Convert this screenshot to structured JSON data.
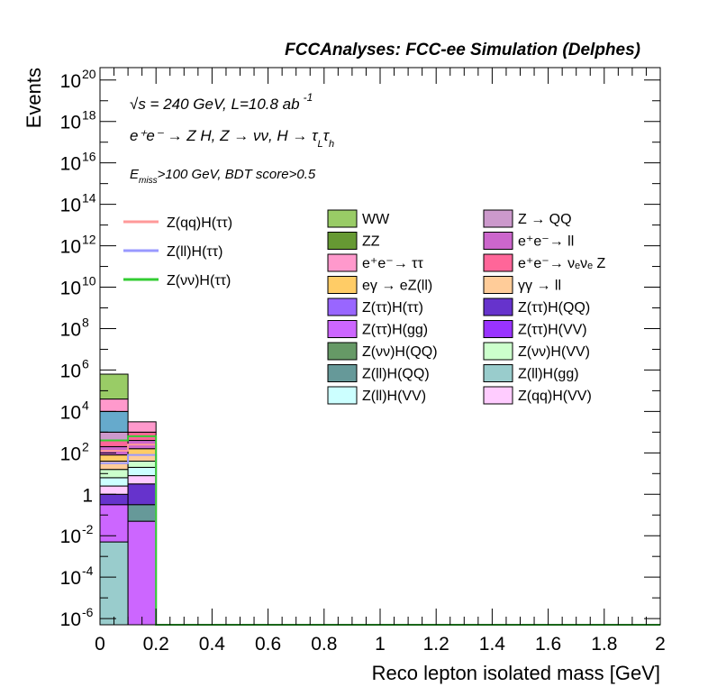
{
  "header": {
    "title": "FCCAnalyses: FCC-ee Simulation (Delphes)"
  },
  "annotations": {
    "sqrt_s": "√s = 240 GeV, L=10.8 ab",
    "lumi_exp": "-1",
    "process": "e⁺e⁻ → Z H, Z → νν, H → τ",
    "tau_sub_L": "L",
    "tau2": "τ",
    "tau_sub_h": "h",
    "cut_E": "E",
    "cut_sub": "miss",
    "cut_rest": ">100 GeV, BDT score>0.5"
  },
  "chart_data": {
    "type": "bar",
    "stacked": true,
    "xlabel": "Reco lepton isolated mass [GeV]",
    "ylabel": "Events",
    "xlim": [
      0,
      2
    ],
    "ylim_log10": [
      -6.3,
      20.6
    ],
    "log_y": true,
    "bin_edges": [
      0,
      0.1,
      0.2
    ],
    "x_ticks": [
      "0",
      "0.2",
      "0.4",
      "0.6",
      "0.8",
      "1",
      "1.2",
      "1.4",
      "1.6",
      "1.8",
      "2"
    ],
    "y_ticks": [
      {
        "v": -6,
        "label": "10",
        "exp": "-6"
      },
      {
        "v": -4,
        "label": "10",
        "exp": "-4"
      },
      {
        "v": -2,
        "label": "10",
        "exp": "-2"
      },
      {
        "v": 0,
        "label": "1",
        "exp": ""
      },
      {
        "v": 2,
        "label": "10",
        "exp": "2"
      },
      {
        "v": 4,
        "label": "10",
        "exp": "4"
      },
      {
        "v": 6,
        "label": "10",
        "exp": "6"
      },
      {
        "v": 8,
        "label": "10",
        "exp": "8"
      },
      {
        "v": 10,
        "label": "10",
        "exp": "10"
      },
      {
        "v": 12,
        "label": "10",
        "exp": "12"
      },
      {
        "v": 14,
        "label": "10",
        "exp": "14"
      },
      {
        "v": 16,
        "label": "10",
        "exp": "16"
      },
      {
        "v": 18,
        "label": "10",
        "exp": "18"
      },
      {
        "v": 20,
        "label": "10",
        "exp": "20"
      }
    ],
    "stack_bin1_log10_boundaries": [
      -6.3,
      -2.3,
      -0.5,
      0.0,
      0.4,
      0.8,
      1.2,
      1.6,
      1.9,
      2.3,
      2.6,
      3.0,
      4.0,
      4.6,
      5.8
    ],
    "stack_bin1_colors": [
      "#99cccc",
      "#cc66ff",
      "#6633cc",
      "#ffccff",
      "#ccffff",
      "#ccffcc",
      "#ffcc99",
      "#ffcc66",
      "#cc66cc",
      "#ff6699",
      "#cc99cc",
      "#66aacc",
      "#ff99cc",
      "#99cc66"
    ],
    "stack_bin2_log10_boundaries": [
      -6.3,
      -1.3,
      -0.5,
      0.5,
      0.9,
      1.3,
      1.6,
      1.9,
      2.2,
      2.6,
      3.0,
      3.5
    ],
    "stack_bin2_colors": [
      "#cc66ff",
      "#669999",
      "#6633cc",
      "#ffccff",
      "#ccffff",
      "#ccffcc",
      "#ffcc99",
      "#ffcc66",
      "#cc66cc",
      "#ff6699",
      "#ff99cc"
    ],
    "signal_lines": [
      {
        "name": "Z(qq)H(ττ)",
        "color": "#ff9999",
        "log10_values": [
          2.1,
          2.4
        ]
      },
      {
        "name": "Z(ll)H(ττ)",
        "color": "#9999ff",
        "log10_values": [
          1.5,
          1.9
        ]
      },
      {
        "name": "Z(νν)H(ττ)",
        "color": "#33cc33",
        "log10_values": [
          2.6,
          2.8
        ]
      }
    ],
    "legend_lines": [
      {
        "name": "Z(qq)H(ττ)",
        "color": "#ff9999"
      },
      {
        "name": "Z(ll)H(ττ)",
        "color": "#9999ff"
      },
      {
        "name": "Z(νν)H(ττ)",
        "color": "#33cc33"
      }
    ],
    "legend_col1": [
      {
        "name": "WW",
        "color": "#99cc66"
      },
      {
        "name": "ZZ",
        "color": "#669933"
      },
      {
        "name": "e⁺e⁻→ ττ",
        "color": "#ff99cc"
      },
      {
        "name": "eγ → eZ(ll)",
        "color": "#ffcc66"
      },
      {
        "name": "Z(ττ)H(ττ)",
        "color": "#9966ff"
      },
      {
        "name": "Z(ττ)H(gg)",
        "color": "#cc66ff"
      },
      {
        "name": "Z(νν)H(QQ)",
        "color": "#669966"
      },
      {
        "name": "Z(ll)H(QQ)",
        "color": "#669999"
      },
      {
        "name": "Z(ll)H(VV)",
        "color": "#ccffff"
      }
    ],
    "legend_col2": [
      {
        "name": "Z → QQ",
        "color": "#cc99cc"
      },
      {
        "name": "e⁺e⁻→ ll",
        "color": "#cc66cc"
      },
      {
        "name": "e⁺e⁻→ νₑνₑ Z",
        "color": "#ff6699"
      },
      {
        "name": "γγ → ll",
        "color": "#ffcc99"
      },
      {
        "name": "Z(ττ)H(QQ)",
        "color": "#6633cc"
      },
      {
        "name": "Z(ττ)H(VV)",
        "color": "#9933ff"
      },
      {
        "name": "Z(νν)H(VV)",
        "color": "#ccffcc"
      },
      {
        "name": "Z(ll)H(gg)",
        "color": "#99cccc"
      },
      {
        "name": "Z(qq)H(VV)",
        "color": "#ffccff"
      }
    ]
  }
}
